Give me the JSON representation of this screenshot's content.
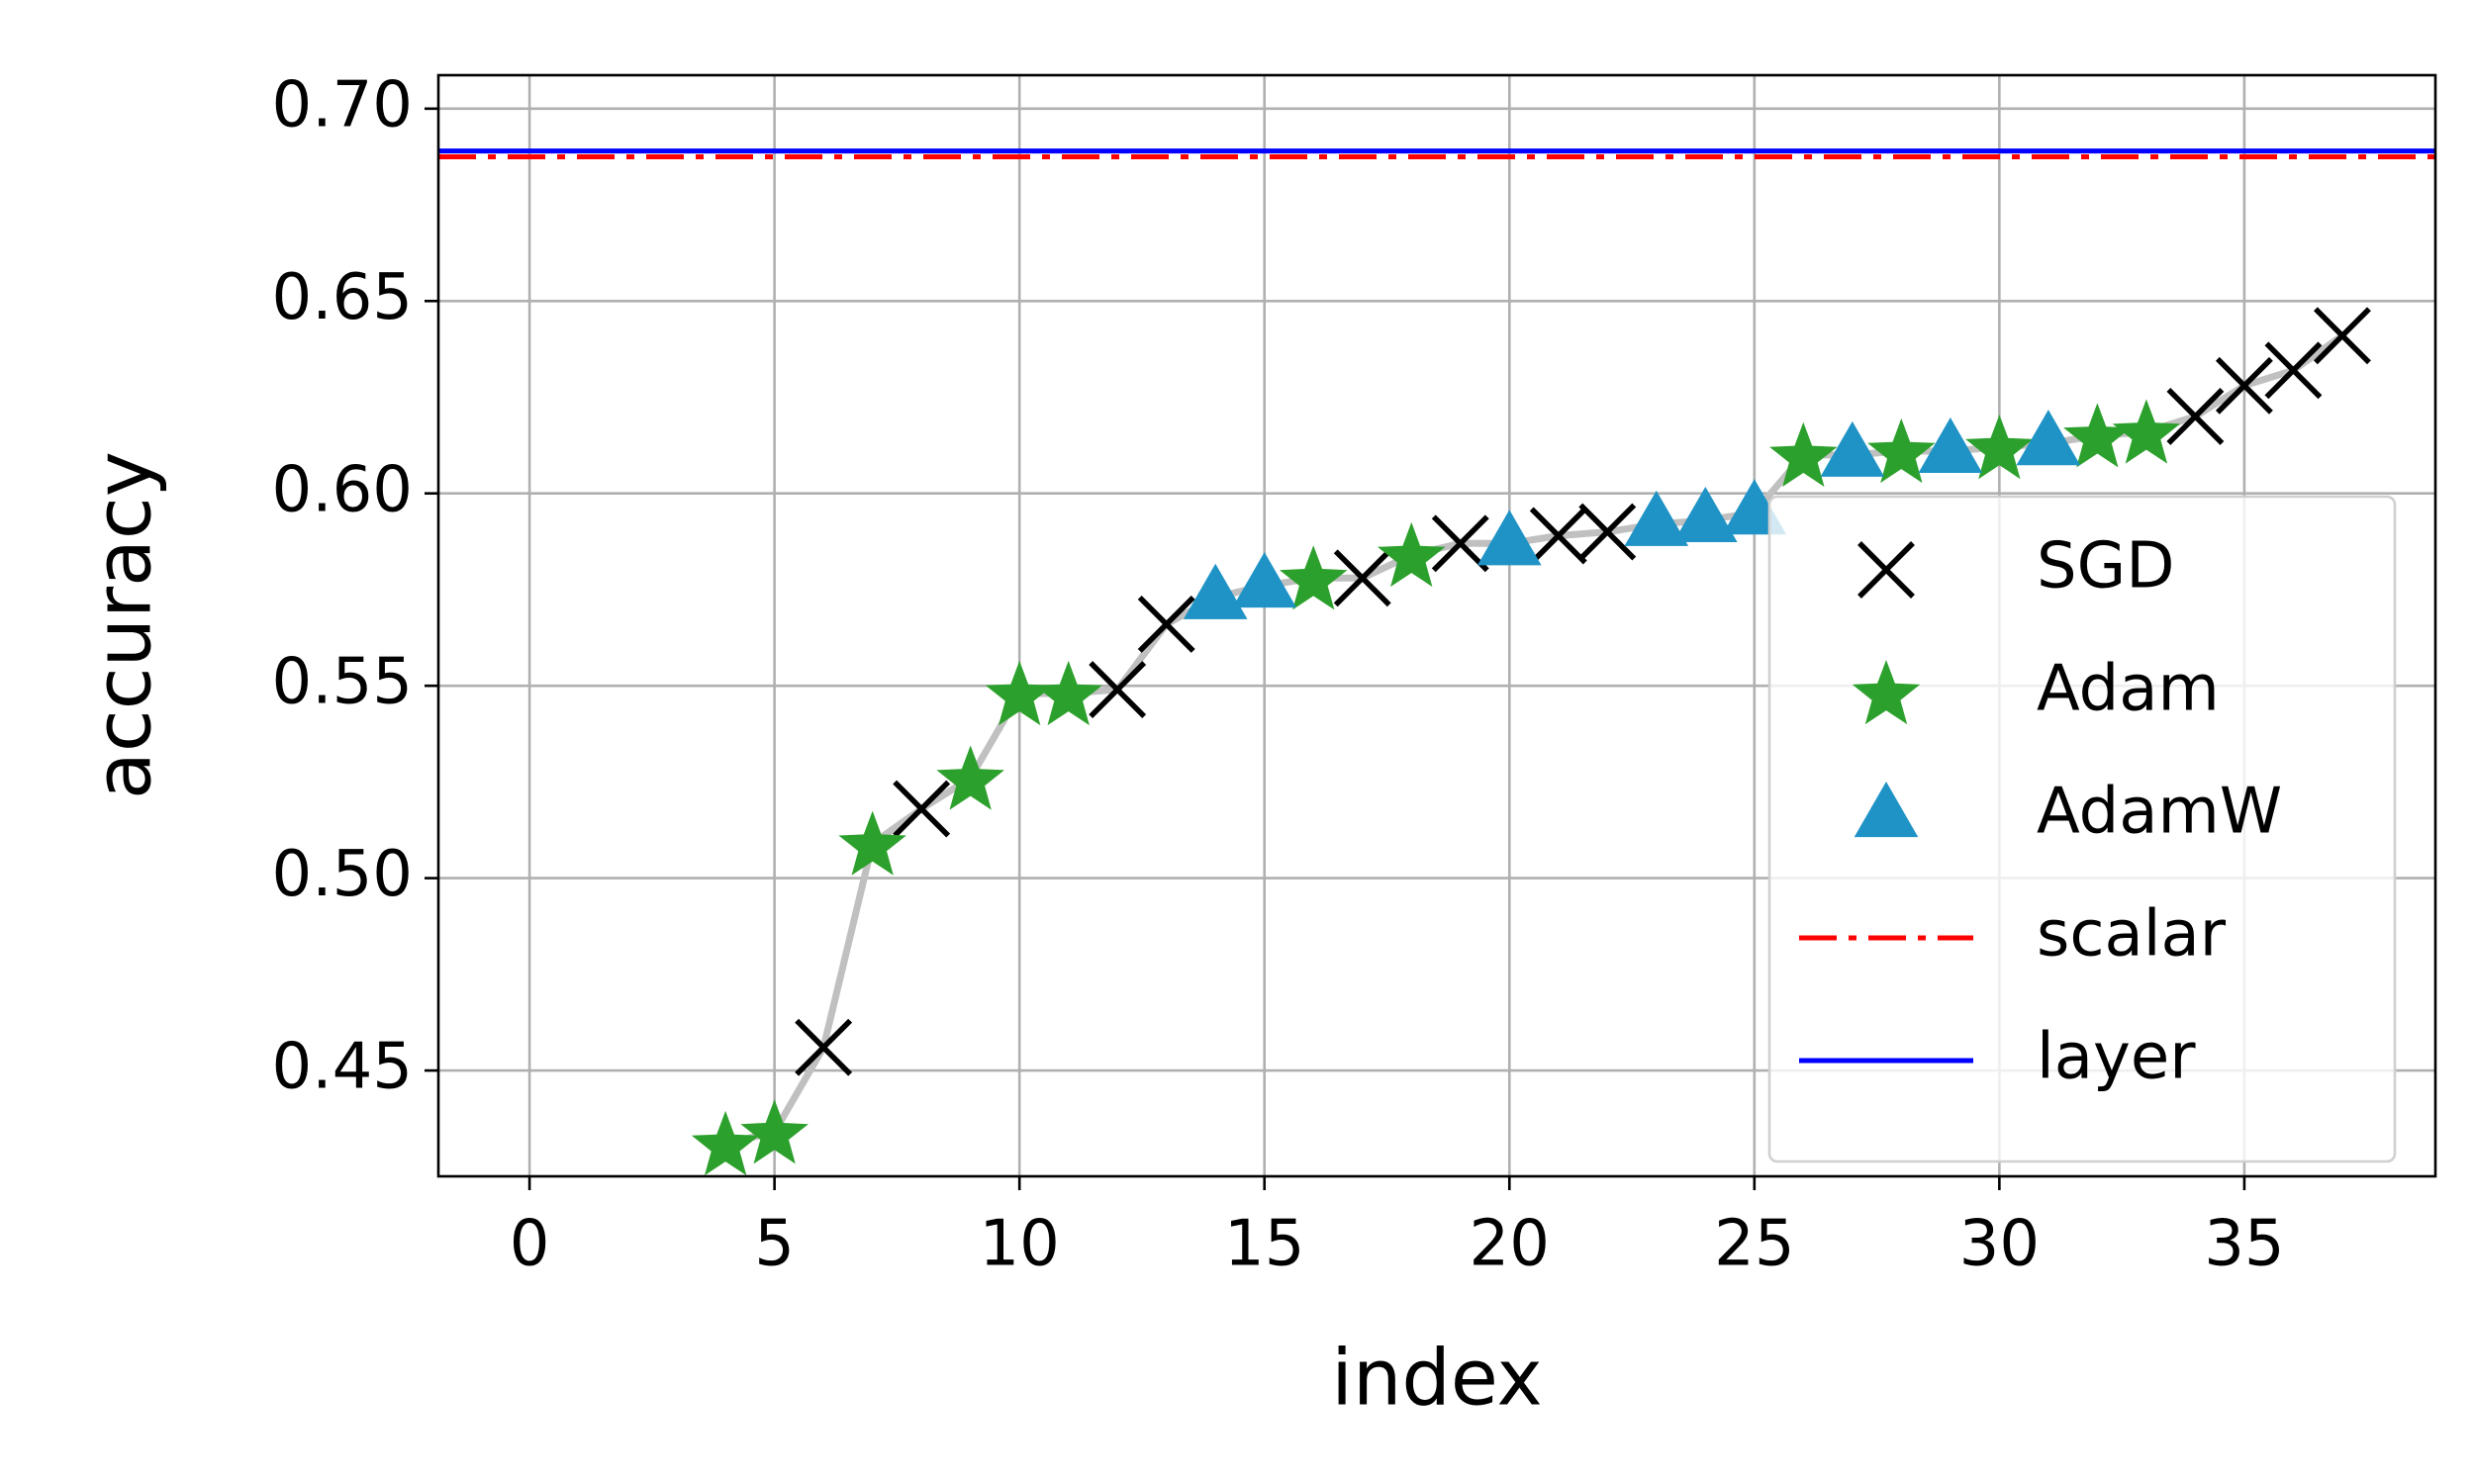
{
  "chart_data": {
    "type": "scatter",
    "xlabel": "index",
    "ylabel": "accuracy",
    "xlim": [
      -1.86,
      38.9
    ],
    "ylim": [
      0.4225,
      0.7087
    ],
    "xticks": [
      0,
      5,
      10,
      15,
      20,
      25,
      30,
      35
    ],
    "yticks": [
      0.45,
      {
        "value": 0.5,
        "label": "0.50"
      },
      0.55,
      {
        "value": 0.6,
        "label": "0.60"
      },
      0.65,
      {
        "value": 0.7,
        "label": "0.70"
      }
    ],
    "grid": true,
    "connect_color": "#c0c0c0",
    "legend": "right",
    "series": [
      {
        "name": "SGD",
        "marker": "x",
        "color": "#000000",
        "x": [
          6,
          8,
          12,
          13,
          17,
          19,
          21,
          22,
          34,
          35,
          36,
          37
        ],
        "values": [
          0.456,
          0.518,
          0.549,
          0.566,
          0.578,
          0.587,
          0.589,
          0.59,
          0.62,
          0.628,
          0.632,
          0.641
        ]
      },
      {
        "name": "Adam",
        "marker": "star",
        "color": "#2ca02c",
        "x": [
          4,
          5,
          7,
          9,
          10,
          11,
          16,
          18,
          26,
          28,
          30,
          32,
          33
        ],
        "values": [
          0.431,
          0.434,
          0.509,
          0.526,
          0.548,
          0.548,
          0.578,
          0.584,
          0.61,
          0.611,
          0.612,
          0.615,
          0.616
        ]
      },
      {
        "name": "AdamW",
        "marker": "triangle",
        "color": "#1f93c6",
        "x": [
          14,
          15,
          20,
          23,
          24,
          25,
          27,
          29,
          31
        ],
        "values": [
          0.573,
          0.576,
          0.587,
          0.592,
          0.593,
          0.595,
          0.61,
          0.611,
          0.613
        ]
      }
    ],
    "hlines": [
      {
        "name": "scalar",
        "color": "#ff0000",
        "style": "dashdot",
        "value": 0.6875
      },
      {
        "name": "layer",
        "color": "#0000ff",
        "style": "solid",
        "value": 0.689
      }
    ]
  }
}
